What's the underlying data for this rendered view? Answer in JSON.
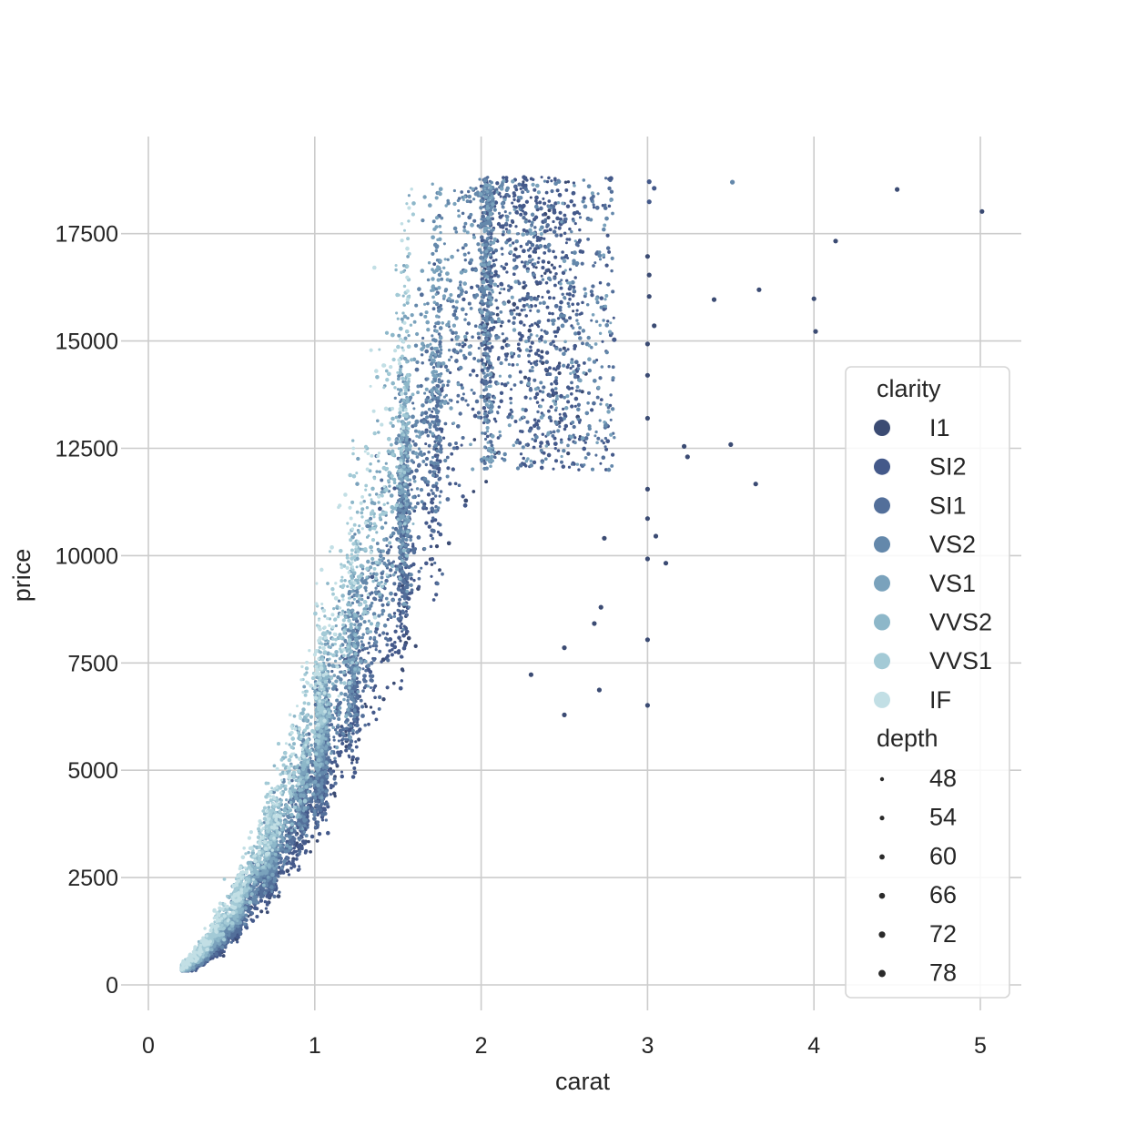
{
  "chart_data": {
    "type": "scatter",
    "title": "",
    "xlabel": "carat",
    "ylabel": "price",
    "xlim": [
      0,
      5.2
    ],
    "ylim": [
      -700,
      19700
    ],
    "xticks": [
      0,
      1,
      2,
      3,
      4,
      5
    ],
    "yticks": [
      0,
      2500,
      5000,
      7500,
      10000,
      12500,
      15000,
      17500
    ],
    "grid": true,
    "legend_position": "right",
    "hue": {
      "title": "clarity",
      "categories": [
        "I1",
        "SI2",
        "SI1",
        "VS2",
        "VS1",
        "VVS2",
        "VVS1",
        "IF"
      ],
      "colors": [
        "#3b4b73",
        "#44598a",
        "#536f9a",
        "#6488ab",
        "#7aa2bc",
        "#8db7c9",
        "#a3cad6",
        "#c2dfe5"
      ]
    },
    "size": {
      "title": "depth",
      "levels": [
        48,
        54,
        60,
        66,
        72,
        78
      ]
    },
    "series_note": "",
    "outlier_points": [
      {
        "x": 5.01,
        "y": 18018,
        "clarity": "I1"
      },
      {
        "x": 4.5,
        "y": 18531,
        "clarity": "I1"
      },
      {
        "x": 4.13,
        "y": 17329,
        "clarity": "I1"
      },
      {
        "x": 4.01,
        "y": 15223,
        "clarity": "I1"
      },
      {
        "x": 4.0,
        "y": 15984,
        "clarity": "I1"
      },
      {
        "x": 3.67,
        "y": 16193,
        "clarity": "I1"
      },
      {
        "x": 3.65,
        "y": 11668,
        "clarity": "I1"
      },
      {
        "x": 3.51,
        "y": 18701,
        "clarity": "VS2"
      },
      {
        "x": 3.5,
        "y": 12587,
        "clarity": "I1"
      },
      {
        "x": 3.4,
        "y": 15964,
        "clarity": "I1"
      },
      {
        "x": 3.24,
        "y": 12300,
        "clarity": "I1"
      },
      {
        "x": 3.22,
        "y": 12545,
        "clarity": "I1"
      },
      {
        "x": 3.11,
        "y": 9823,
        "clarity": "I1"
      },
      {
        "x": 3.05,
        "y": 10453,
        "clarity": "I1"
      },
      {
        "x": 3.04,
        "y": 18559,
        "clarity": "SI2"
      },
      {
        "x": 3.04,
        "y": 15354,
        "clarity": "I1"
      },
      {
        "x": 3.01,
        "y": 18710,
        "clarity": "SI2"
      },
      {
        "x": 3.01,
        "y": 18242,
        "clarity": "SI2"
      },
      {
        "x": 3.01,
        "y": 16538,
        "clarity": "I1"
      },
      {
        "x": 3.01,
        "y": 16037,
        "clarity": "I1"
      },
      {
        "x": 3.0,
        "y": 16970,
        "clarity": "I1"
      },
      {
        "x": 3.0,
        "y": 14930,
        "clarity": "I1"
      },
      {
        "x": 3.0,
        "y": 14200,
        "clarity": "I1"
      },
      {
        "x": 3.0,
        "y": 13200,
        "clarity": "I1"
      },
      {
        "x": 3.0,
        "y": 11548,
        "clarity": "I1"
      },
      {
        "x": 3.0,
        "y": 10863,
        "clarity": "I1"
      },
      {
        "x": 3.0,
        "y": 9924,
        "clarity": "I1"
      },
      {
        "x": 3.0,
        "y": 8040,
        "clarity": "I1"
      },
      {
        "x": 3.0,
        "y": 6512,
        "clarity": "I1"
      },
      {
        "x": 2.8,
        "y": 15030,
        "clarity": "SI2"
      },
      {
        "x": 2.78,
        "y": 18788,
        "clarity": "SI2"
      },
      {
        "x": 2.74,
        "y": 10405,
        "clarity": "I1"
      },
      {
        "x": 2.72,
        "y": 8798,
        "clarity": "I1"
      },
      {
        "x": 2.71,
        "y": 6870,
        "clarity": "I1"
      },
      {
        "x": 2.68,
        "y": 8419,
        "clarity": "I1"
      },
      {
        "x": 2.5,
        "y": 6289,
        "clarity": "I1"
      },
      {
        "x": 2.5,
        "y": 7854,
        "clarity": "I1"
      },
      {
        "x": 2.3,
        "y": 7226,
        "clarity": "I1"
      }
    ]
  }
}
